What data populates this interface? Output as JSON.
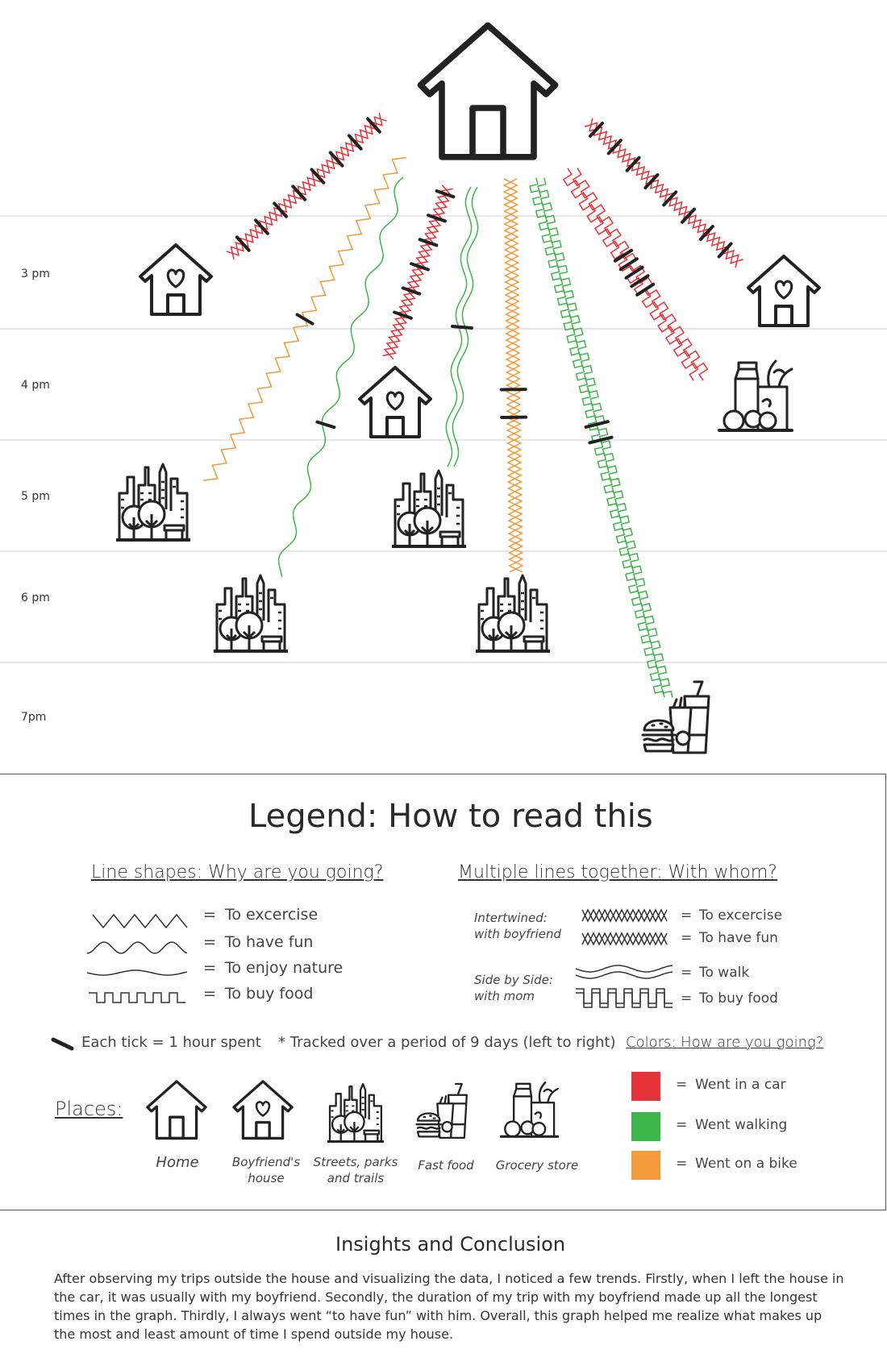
{
  "time_labels": [
    "3 pm",
    "4 pm",
    "5 pm",
    "6 pm",
    "7pm"
  ],
  "legend": {
    "title": "Legend: How to read this",
    "line_shapes": {
      "heading": "Line shapes: Why are you going?",
      "items": [
        "To excercise",
        "To have fun",
        "To enjoy nature",
        "To buy food"
      ]
    },
    "multiple_lines": {
      "heading": "Multiple lines together: With whom?",
      "intertwined_label": "Intertwined:",
      "intertwined_sub": "with boyfriend",
      "intertwined_items": [
        "To excercise",
        "To have fun"
      ],
      "side_label": "Side by Side:",
      "side_sub": "with mom",
      "side_items": [
        "To walk",
        "To buy food"
      ]
    },
    "equals": "=",
    "tick_note": "Each tick = 1 hour spent",
    "tracked_note": "* Tracked over a period of 9 days (left to right)",
    "colors": {
      "heading": "Colors: How are you going?",
      "items": [
        {
          "label": "Went in a car",
          "color": "#e8323a"
        },
        {
          "label": "Went walking",
          "color": "#3cb54a"
        },
        {
          "label": "Went on a bike",
          "color": "#f39a3a"
        }
      ]
    },
    "places": {
      "heading": "Places:",
      "items": [
        {
          "label": "Home",
          "icon": "home-icon"
        },
        {
          "label": "Boyfriend's house",
          "icon": "boyfriend-house-icon"
        },
        {
          "label": "Streets, parks and trails",
          "icon": "city-park-icon"
        },
        {
          "label": "Fast food",
          "icon": "fast-food-icon"
        },
        {
          "label": "Grocery store",
          "icon": "grocery-store-icon"
        }
      ]
    }
  },
  "insights": {
    "title": "Insights and Conclusion",
    "body": "After observing my trips outside the house and visualizing the data, I noticed a few trends. Firstly, when I left the house in the car, it was usually with my boyfriend. Secondly, the duration of my trip with my boyfriend made up all the longest times in the graph. Thirdly, I always went “to have fun” with him. Overall, this graph helped me realize what makes up the most and least amount of time I spend outside my house."
  }
}
